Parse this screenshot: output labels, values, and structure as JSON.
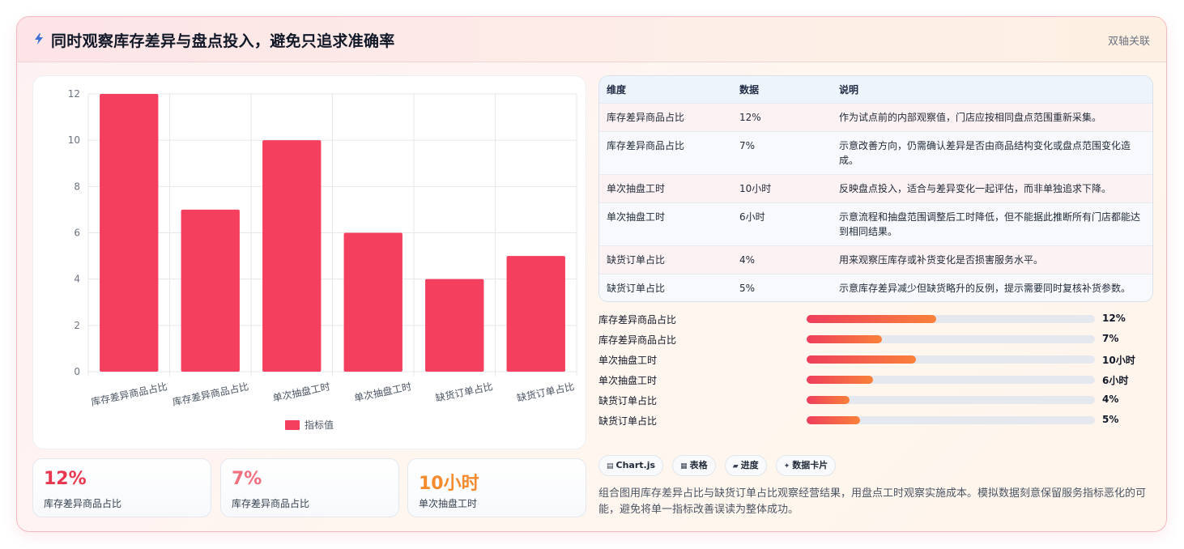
{
  "header": {
    "title": "同时观察库存差异与盘点投入，避免只追求准确率",
    "tag": "双轴关联",
    "icon": "lightning-icon"
  },
  "chart_data": {
    "type": "bar",
    "categories": [
      "库存差异商品占比",
      "库存差异商品占比",
      "单次抽盘工时",
      "单次抽盘工时",
      "缺货订单占比",
      "缺货订单占比"
    ],
    "series": [
      {
        "name": "指标值",
        "values": [
          12,
          7,
          10,
          6,
          4,
          5
        ],
        "color": "#f43f5e"
      }
    ],
    "ylim": [
      0,
      12
    ],
    "yticks": [
      0,
      2,
      4,
      6,
      8,
      10,
      12
    ],
    "grid": true,
    "legend": "bottom"
  },
  "kpis": [
    {
      "value": "12%",
      "label": "库存差异商品占比",
      "color": "#e8384f"
    },
    {
      "value": "7%",
      "label": "库存差异商品占比",
      "color": "#f07080"
    },
    {
      "value": "10小时",
      "label": "单次抽盘工时",
      "color": "#f58a2e"
    }
  ],
  "table": {
    "headers": [
      "维度",
      "数据",
      "说明"
    ],
    "rows": [
      [
        "库存差异商品占比",
        "12%",
        "作为试点前的内部观察值，门店应按相同盘点范围重新采集。"
      ],
      [
        "库存差异商品占比",
        "7%",
        "示意改善方向，仍需确认差异是否由商品结构变化或盘点范围变化造成。"
      ],
      [
        "单次抽盘工时",
        "10小时",
        "反映盘点投入，适合与差异变化一起评估，而非单独追求下降。"
      ],
      [
        "单次抽盘工时",
        "6小时",
        "示意流程和抽盘范围调整后工时降低，但不能据此推断所有门店都能达到相同结果。"
      ],
      [
        "缺货订单占比",
        "4%",
        "用来观察压库存或补货变化是否损害服务水平。"
      ],
      [
        "缺货订单占比",
        "5%",
        "示意库存差异减少但缺货略升的反例，提示需要同时复核补货参数。"
      ]
    ]
  },
  "progress": [
    {
      "label": "库存差异商品占比",
      "value": "12%",
      "fraction": 0.45
    },
    {
      "label": "库存差异商品占比",
      "value": "7%",
      "fraction": 0.26
    },
    {
      "label": "单次抽盘工时",
      "value": "10小时",
      "fraction": 0.38
    },
    {
      "label": "单次抽盘工时",
      "value": "6小时",
      "fraction": 0.23
    },
    {
      "label": "缺货订单占比",
      "value": "4%",
      "fraction": 0.15
    },
    {
      "label": "缺货订单占比",
      "value": "5%",
      "fraction": 0.185
    }
  ],
  "chips": [
    {
      "icon": "▤",
      "label": "Chart.js"
    },
    {
      "icon": "▦",
      "label": "表格"
    },
    {
      "icon": "▰",
      "label": "进度"
    },
    {
      "icon": "✦",
      "label": "数据卡片"
    }
  ],
  "note": "组合图用库存差异占比与缺货订单占比观察经营结果，用盘点工时观察实施成本。模拟数据刻意保留服务指标恶化的可能，避免将单一指标改善误读为整体成功。"
}
